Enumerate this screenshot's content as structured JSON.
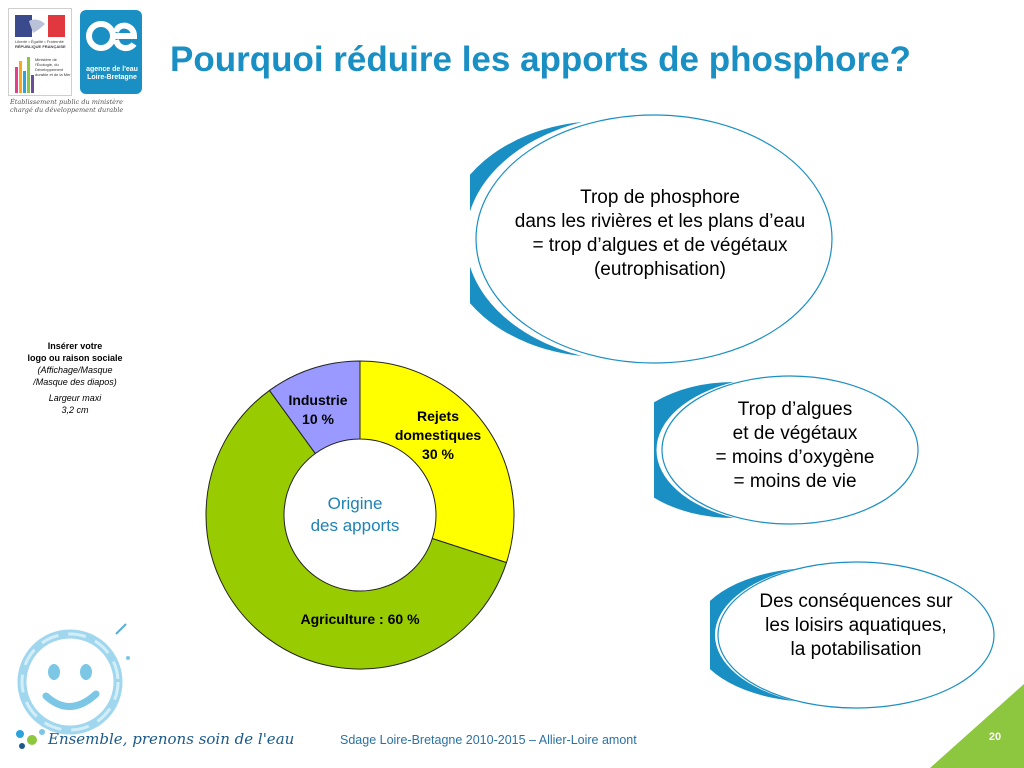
{
  "title": "Pourquoi réduire les apports de phosphore?",
  "logos": {
    "ministry_small": "Liberté • Égalité • Fraternité",
    "ministry_country": "RÉPUBLIQUE FRANÇAISE",
    "ministry_name": "Ministère de l'Écologie, du Développement durable et de la Mer",
    "agency_name": "agence de l'eau Loire-Bretagne",
    "agency_tagline_1": "Établissement public du ministère",
    "agency_tagline_2": "chargé du développement durable"
  },
  "insert_note": {
    "line1": "Insérer votre",
    "line2": "logo ou raison sociale",
    "line3": "(Affichage/Masque",
    "line4": "/Masque des diapos)",
    "line5": "Largeur maxi",
    "line6": "3,2 cm"
  },
  "bubbles": {
    "top": {
      "line1": "Trop de phosphore",
      "line2": "dans les rivières et les plans d’eau",
      "line3": "= trop d’algues et de végétaux",
      "line4": "(eutrophisation)"
    },
    "middle": {
      "line1": "Trop d’algues",
      "line2": "et de végétaux",
      "line3": "= moins d’oxygène",
      "line4": "= moins de vie"
    },
    "bottom": {
      "line1": "Des conséquences sur",
      "line2": "les loisirs aquatiques,",
      "line3": "la potabilisation"
    }
  },
  "chart_data": {
    "type": "pie",
    "title": "",
    "center_line1": "Origine",
    "center_line2": "des apports",
    "slices": [
      {
        "name": "Rejets domestiques",
        "label_line1": "Rejets",
        "label_line2": "domestiques",
        "label_value": "30 %",
        "value": 30,
        "color": "#ffff00"
      },
      {
        "name": "Agriculture",
        "label_line1": "Agriculture : 60 %",
        "value": 60,
        "color": "#99cc00"
      },
      {
        "name": "Industrie",
        "label_line1": "Industrie",
        "label_value": "10 %",
        "value": 10,
        "color": "#9999ff"
      }
    ]
  },
  "footer": {
    "source": "Sdage Loire-Bretagne 2010-2015 – Allier-Loire amont",
    "page_number": "20",
    "slogan": "Ensemble, prenons soin de l'eau"
  },
  "colors": {
    "title": "#1a8fc3",
    "accent": "#1a8fc3",
    "page_corner": "#8dc63f"
  }
}
